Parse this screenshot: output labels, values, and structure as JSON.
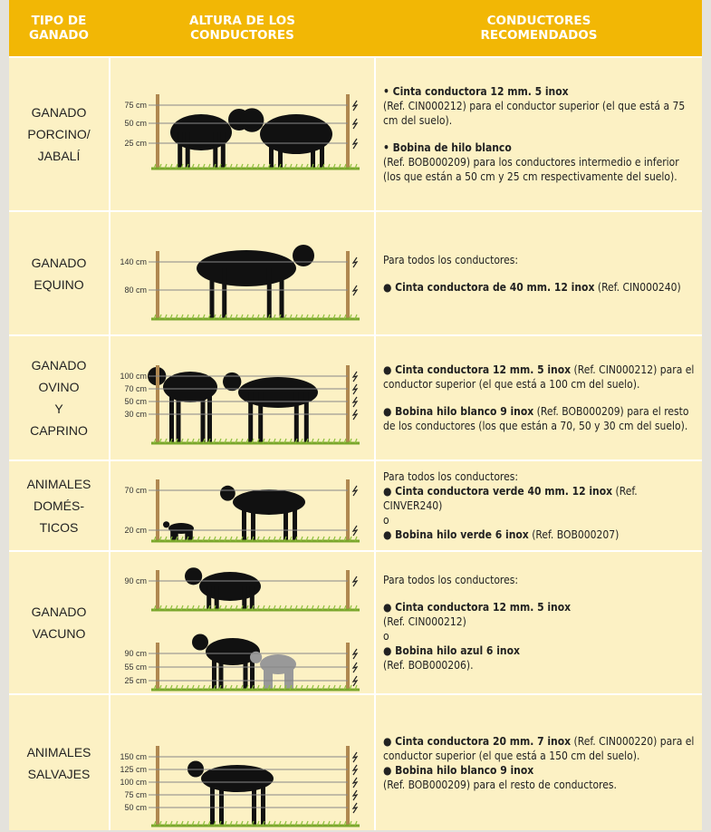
{
  "header": [
    [
      "TIPO DE",
      "GANADO"
    ],
    [
      "ALTURA DE LOS",
      "CONDUCTORES"
    ],
    [
      "CONDUCTORES",
      "RECOMENDADOS"
    ]
  ],
  "rows": [
    {
      "type": [
        "GANADO",
        "PORCINO/",
        "JABALÍ"
      ],
      "fences": [
        [
          "75 cm",
          "50 cm",
          "25 cm"
        ]
      ],
      "description": [
        {
          "runs": [
            {
              "text": "• Cinta conductora 12 mm. 5 inox",
              "bold": true
            }
          ]
        },
        {
          "runs": [
            {
              "text": "(Ref. CIN000212) para el conductor superior (el que está a 75 cm del suelo)."
            }
          ]
        },
        {
          "gap": true,
          "runs": [
            {
              "text": "• Bobina de hilo blanco",
              "bold": true
            }
          ]
        },
        {
          "runs": [
            {
              "text": "(Ref. BOB000209) para los conductores intermedio e inferior (los que están a 50 cm y 25 cm respectivamente del suelo)."
            }
          ]
        }
      ]
    },
    {
      "type": [
        "GANADO",
        "EQUINO"
      ],
      "fences": [
        [
          "140 cm",
          "80 cm"
        ]
      ],
      "description": [
        {
          "runs": [
            {
              "text": "Para todos los conductores:"
            }
          ]
        },
        {
          "gap": true,
          "runs": [
            {
              "text": "● Cinta conductora de 40 mm. 12 inox",
              "bold": true
            },
            {
              "text": " (Ref. CIN000240)"
            }
          ]
        }
      ]
    },
    {
      "type": [
        "GANADO",
        "OVINO",
        "Y",
        "CAPRINO"
      ],
      "fences": [
        [
          "100 cm",
          "70 cm",
          "50 cm",
          "30 cm"
        ]
      ],
      "description": [
        {
          "runs": [
            {
              "text": "● Cinta conductora 12 mm. 5 inox",
              "bold": true
            },
            {
              "text": " (Ref. CIN000212) para el conductor superior (el que está a 100 cm del suelo)."
            }
          ]
        },
        {
          "gap": true,
          "runs": [
            {
              "text": "● Bobina hilo blanco 9 inox",
              "bold": true
            },
            {
              "text": " (Ref. BOB000209) para el resto de los conductores (los que están a 70, 50 y 30 cm del suelo)."
            }
          ]
        }
      ]
    },
    {
      "type": [
        "ANIMALES",
        "DOMÉS-",
        "TICOS"
      ],
      "fences": [
        [
          "70 cm",
          "20 cm"
        ]
      ],
      "description": [
        {
          "runs": [
            {
              "text": "Para todos los conductores:"
            }
          ]
        },
        {
          "runs": [
            {
              "text": "● Cinta conductora verde 40 mm. 12 inox",
              "bold": true
            },
            {
              "text": " (Ref. CINVER240)"
            }
          ]
        },
        {
          "runs": [
            {
              "text": "o"
            }
          ]
        },
        {
          "runs": [
            {
              "text": "● Bobina hilo verde 6 inox",
              "bold": true
            },
            {
              "text": " (Ref. BOB000207)"
            }
          ]
        }
      ]
    },
    {
      "type": [
        "GANADO",
        "VACUNO"
      ],
      "fences": [
        [
          "90 cm"
        ],
        [
          "90 cm",
          "55 cm",
          "25 cm"
        ]
      ],
      "description": [
        {
          "runs": [
            {
              "text": "Para todos los conductores:"
            }
          ]
        },
        {
          "gap": true,
          "runs": [
            {
              "text": "● Cinta conductora 12 mm. 5 inox",
              "bold": true
            }
          ]
        },
        {
          "runs": [
            {
              "text": "(Ref. CIN000212)"
            }
          ]
        },
        {
          "runs": [
            {
              "text": "o"
            }
          ]
        },
        {
          "runs": [
            {
              "text": "● Bobina hilo azul 6 inox",
              "bold": true
            }
          ]
        },
        {
          "runs": [
            {
              "text": "(Ref. BOB000206)."
            }
          ]
        }
      ]
    },
    {
      "type": [
        "ANIMALES",
        "SALVAJES"
      ],
      "fences": [
        [
          "150 cm",
          "125 cm",
          "100 cm",
          "75 cm",
          "50 cm"
        ]
      ],
      "description": [
        {
          "runs": [
            {
              "text": "● Cinta conductora 20 mm. 7 inox",
              "bold": true
            },
            {
              "text": " (Ref. CIN000220) para el conductor superior (el que está a 150 cm del suelo)."
            }
          ]
        },
        {
          "runs": [
            {
              "text": "● Bobina hilo blanco 9 inox",
              "bold": true
            }
          ]
        },
        {
          "runs": [
            {
              "text": "(Ref. BOB000209) para el resto de conductores."
            }
          ]
        }
      ]
    }
  ]
}
